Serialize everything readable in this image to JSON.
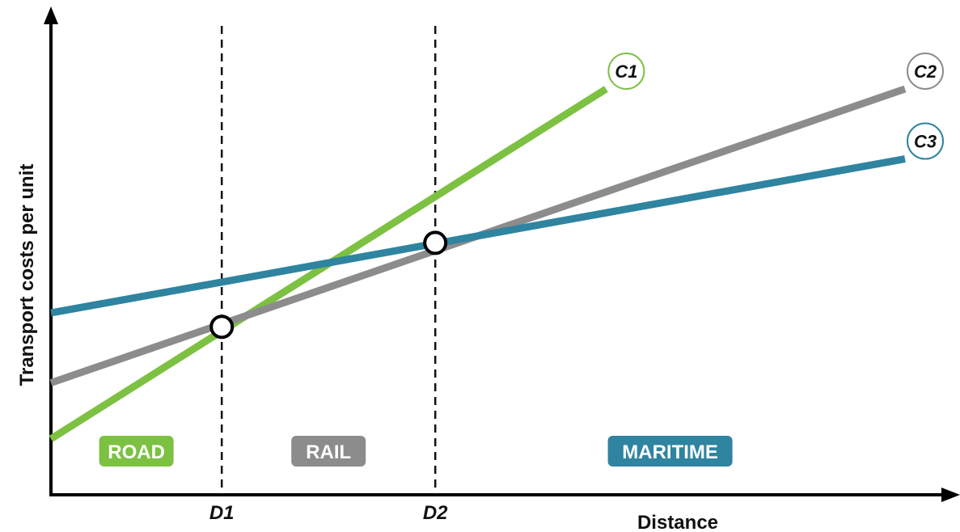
{
  "chart_data": {
    "type": "line",
    "xlabel": "Distance",
    "ylabel": "Transport costs per unit",
    "x_ticks": [
      {
        "label": "D1",
        "x": 2
      },
      {
        "label": "D2",
        "x": 4.5
      }
    ],
    "series": [
      {
        "name": "C1",
        "color": "#7dc142",
        "x": [
          0,
          6.5
        ],
        "y": [
          0.6,
          4.35
        ]
      },
      {
        "name": "C2",
        "color": "#8c8c8c",
        "x": [
          0,
          10
        ],
        "y": [
          1.2,
          4.35
        ]
      },
      {
        "name": "C3",
        "color": "#2f84a0",
        "x": [
          0,
          10
        ],
        "y": [
          1.95,
          3.6
        ]
      }
    ],
    "intersections": [
      {
        "x": 2,
        "y": 1.8
      },
      {
        "x": 4.5,
        "y": 2.7
      }
    ],
    "regions": [
      {
        "label": "ROAD",
        "color": "#7dc142"
      },
      {
        "label": "RAIL",
        "color": "#8c8c8c"
      },
      {
        "label": "MARITIME",
        "color": "#2f84a0"
      }
    ],
    "xlim": [
      0,
      10
    ],
    "ylim": [
      0,
      5
    ],
    "grid": false,
    "legend": "none"
  }
}
